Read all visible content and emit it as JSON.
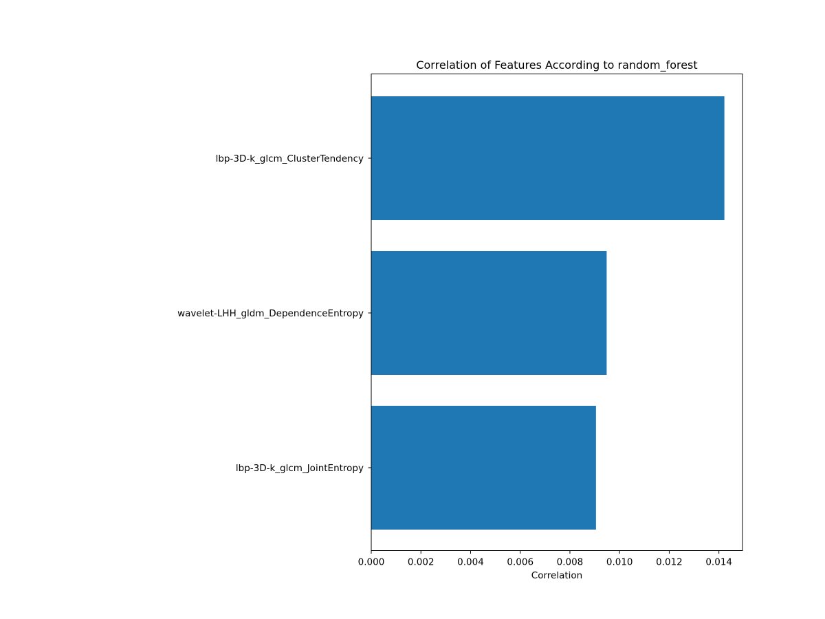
{
  "chart_data": {
    "type": "bar",
    "orientation": "horizontal",
    "title": "Correlation of Features According to random_forest",
    "xlabel": "Correlation",
    "ylabel": "",
    "categories": [
      "lbp-3D-k_glcm_ClusterTendency",
      "wavelet-LHH_gldm_DependenceEntropy",
      "lbp-3D-k_glcm_JointEntropy"
    ],
    "values": [
      0.01422,
      0.00948,
      0.00905
    ],
    "xlim": [
      0.0,
      0.01495
    ],
    "xticks": [
      0.0,
      0.002,
      0.004,
      0.006,
      0.008,
      0.01,
      0.012,
      0.014
    ],
    "xtick_labels": [
      "0.000",
      "0.002",
      "0.004",
      "0.006",
      "0.008",
      "0.010",
      "0.012",
      "0.014"
    ],
    "bar_color": "#1f77b4",
    "grid": false,
    "legend": "none"
  }
}
